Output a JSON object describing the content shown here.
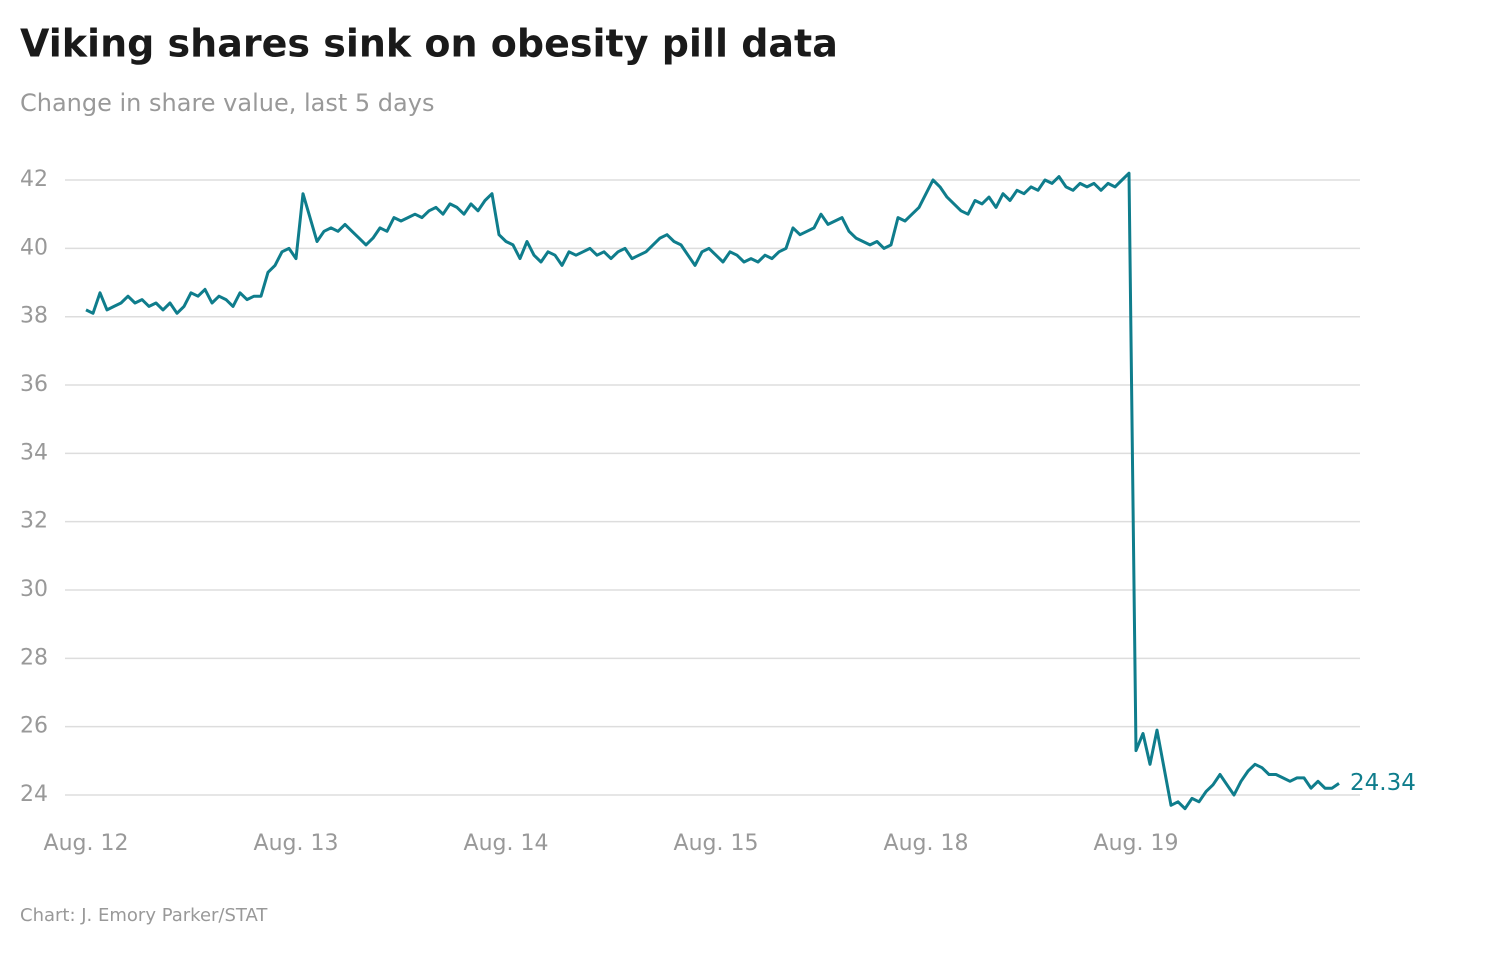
{
  "chart_data": {
    "type": "line",
    "title": "Viking shares sink on obesity pill data",
    "subtitle": "Change in share value, last 5 days",
    "source": "Chart: J. Emory Parker/STAT",
    "xticks": [
      {
        "value": 0,
        "label": "Aug. 12"
      },
      {
        "value": 30,
        "label": "Aug. 13"
      },
      {
        "value": 60,
        "label": "Aug. 14"
      },
      {
        "value": 90,
        "label": "Aug. 15"
      },
      {
        "value": 120,
        "label": "Aug. 18"
      },
      {
        "value": 150,
        "label": "Aug. 19"
      }
    ],
    "xlim": [
      0,
      179
    ],
    "ylim": [
      23.4,
      42.2
    ],
    "yticks": [
      24,
      26,
      28,
      30,
      32,
      34,
      36,
      38,
      40,
      42
    ],
    "grid": true,
    "series": [
      {
        "color": "#0f7d8c",
        "values": [
          38.2,
          38.1,
          38.7,
          38.2,
          38.3,
          38.4,
          38.6,
          38.4,
          38.5,
          38.3,
          38.4,
          38.2,
          38.4,
          38.1,
          38.3,
          38.7,
          38.6,
          38.8,
          38.4,
          38.6,
          38.5,
          38.3,
          38.7,
          38.5,
          38.6,
          38.6,
          39.3,
          39.5,
          39.9,
          40.0,
          39.7,
          41.6,
          40.9,
          40.2,
          40.5,
          40.6,
          40.5,
          40.7,
          40.5,
          40.3,
          40.1,
          40.3,
          40.6,
          40.5,
          40.9,
          40.8,
          40.9,
          41.0,
          40.9,
          41.1,
          41.2,
          41.0,
          41.3,
          41.2,
          41.0,
          41.3,
          41.1,
          41.4,
          41.6,
          40.4,
          40.2,
          40.1,
          39.7,
          40.2,
          39.8,
          39.6,
          39.9,
          39.8,
          39.5,
          39.9,
          39.8,
          39.9,
          40.0,
          39.8,
          39.9,
          39.7,
          39.9,
          40.0,
          39.7,
          39.8,
          39.9,
          40.1,
          40.3,
          40.4,
          40.2,
          40.1,
          39.8,
          39.5,
          39.9,
          40.0,
          39.8,
          39.6,
          39.9,
          39.8,
          39.6,
          39.7,
          39.6,
          39.8,
          39.7,
          39.9,
          40.0,
          40.6,
          40.4,
          40.5,
          40.6,
          41.0,
          40.7,
          40.8,
          40.9,
          40.5,
          40.3,
          40.2,
          40.1,
          40.2,
          40.0,
          40.1,
          40.9,
          40.8,
          41.0,
          41.2,
          41.6,
          42.0,
          41.8,
          41.5,
          41.3,
          41.1,
          41.0,
          41.4,
          41.3,
          41.5,
          41.2,
          41.6,
          41.4,
          41.7,
          41.6,
          41.8,
          41.7,
          42.0,
          41.9,
          42.1,
          41.8,
          41.7,
          41.9,
          41.8,
          41.9,
          41.7,
          41.9,
          41.8,
          42.0,
          42.2,
          25.3,
          25.8,
          24.9,
          25.9,
          24.8,
          23.7,
          23.8,
          23.6,
          23.9,
          23.8,
          24.1,
          24.3,
          24.6,
          24.3,
          24.0,
          24.4,
          24.7,
          24.9,
          24.8,
          24.6,
          24.6,
          24.5,
          24.4,
          24.5,
          24.5,
          24.2,
          24.4,
          24.2,
          24.2,
          24.34
        ]
      }
    ]
  }
}
